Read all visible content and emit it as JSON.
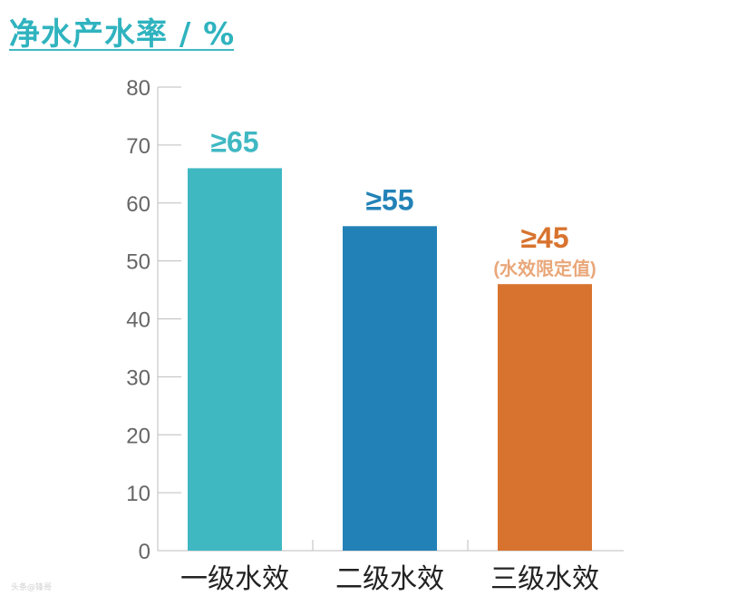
{
  "chart_data": {
    "type": "bar",
    "title": "净水产水率 / %",
    "categories": [
      "一级水效",
      "二级水效",
      "三级水效"
    ],
    "values": [
      66,
      56,
      46
    ],
    "value_labels": [
      "≥65",
      "≥55",
      "≥45"
    ],
    "sub_labels": [
      "",
      "",
      "(水效限定值)"
    ],
    "bar_colors": [
      "#3fb8c2",
      "#2282b7",
      "#d8732f"
    ],
    "label_colors": [
      "#3fb8c2",
      "#2282b7",
      "#d8732f"
    ],
    "sub_label_color": "#e9a779",
    "yticks": [
      0,
      10,
      20,
      30,
      40,
      50,
      60,
      70,
      80
    ],
    "ylim": [
      0,
      80
    ],
    "grid": false,
    "xlabel": "",
    "ylabel": ""
  },
  "watermark": "头条@锋哥"
}
